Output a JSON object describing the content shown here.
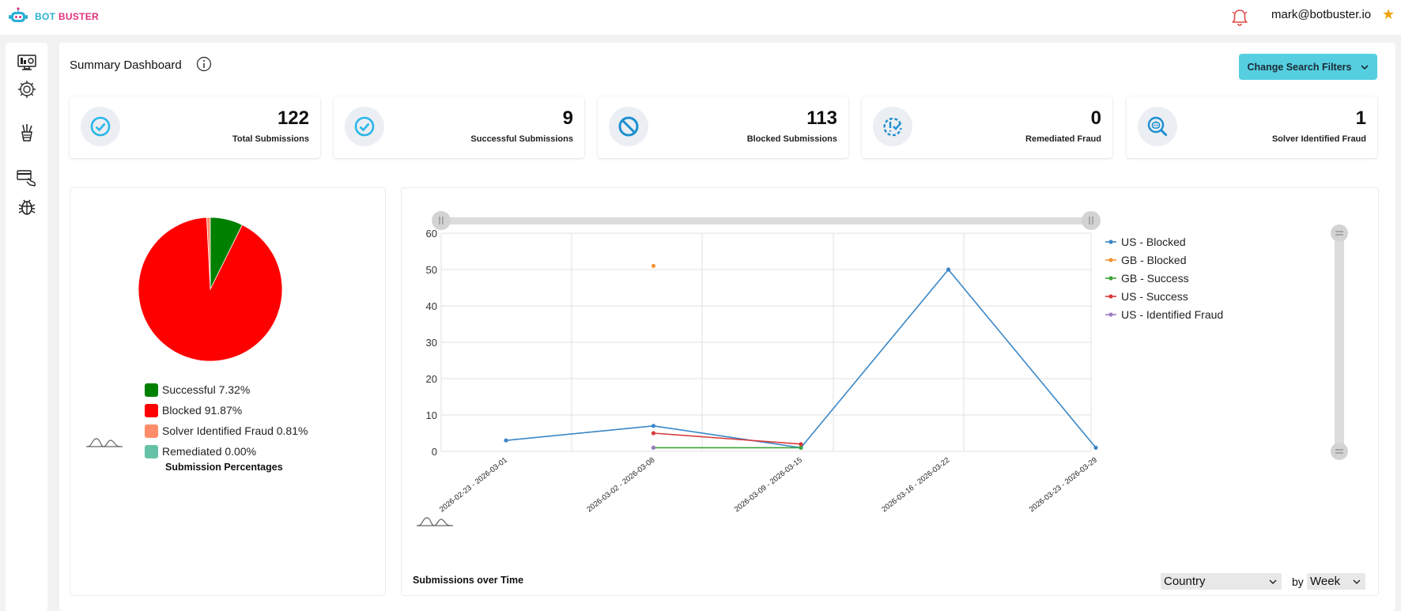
{
  "app": {
    "brand_part1": "BOT",
    "brand_part2": "BUSTER"
  },
  "header": {
    "user_email": "mark@botbuster.io",
    "star_glyph": "★"
  },
  "sidebar": {
    "items": [
      {
        "icon": "dashboard-icon"
      },
      {
        "icon": "settings-icon"
      },
      {
        "icon": "tools-icon"
      },
      {
        "icon": "card-payment-icon"
      },
      {
        "icon": "bug-icon"
      }
    ]
  },
  "dashboard": {
    "title": "Summary Dashboard",
    "filters_button": "Change Search Filters",
    "stats": [
      {
        "value": "122",
        "label": "Total Submissions",
        "icon": "check-circle-icon"
      },
      {
        "value": "9",
        "label": "Successful Submissions",
        "icon": "check-circle-icon"
      },
      {
        "value": "113",
        "label": "Blocked Submissions",
        "icon": "block-icon"
      },
      {
        "value": "0",
        "label": "Remediated Fraud",
        "icon": "remediated-icon"
      },
      {
        "value": "1",
        "label": "Solver Identified Fraud",
        "icon": "search-robot-icon"
      }
    ],
    "pie_caption": "Submission Percentages",
    "line_caption": "Submissions over Time",
    "group_select": "Country",
    "by_label": "by",
    "period_select": "Week"
  },
  "chart_data": [
    {
      "type": "pie",
      "title": "",
      "slices": [
        {
          "label": "Successful",
          "value": 7.32,
          "display": "Successful 7.32%",
          "color": "#008000"
        },
        {
          "label": "Blocked",
          "value": 91.87,
          "display": "Blocked 91.87%",
          "color": "#ff0000"
        },
        {
          "label": "Solver Identified Fraud",
          "value": 0.81,
          "display": "Solver Identified Fraud 0.81%",
          "color": "#ff8c69"
        },
        {
          "label": "Remediated",
          "value": 0.0,
          "display": "Remediated 0.00%",
          "color": "#66c2a5"
        }
      ]
    },
    {
      "type": "line",
      "title": "",
      "xlabel": "",
      "ylabel": "",
      "ylim": [
        0,
        60
      ],
      "yticks": [
        0,
        10,
        20,
        30,
        40,
        50,
        60
      ],
      "grid": true,
      "legend_position": "right",
      "categories": [
        "2026-02-23 - 2026-03-01",
        "2026-03-02 - 2026-03-08",
        "2026-03-09 - 2026-03-15",
        "2026-03-16 - 2026-03-22",
        "2026-03-23 - 2026-03-29"
      ],
      "series": [
        {
          "name": "US - Blocked",
          "color": "#3a87c7",
          "values": [
            3,
            7,
            1,
            50,
            1
          ]
        },
        {
          "name": "GB - Blocked",
          "color": "#f39433",
          "values": [
            null,
            51,
            null,
            null,
            null
          ]
        },
        {
          "name": "GB - Success",
          "color": "#3aa43a",
          "values": [
            null,
            1,
            1,
            null,
            null
          ]
        },
        {
          "name": "US - Success",
          "color": "#d9393b",
          "values": [
            null,
            5,
            2,
            null,
            null
          ]
        },
        {
          "name": "US - Identified Fraud",
          "color": "#9d7cc2",
          "values": [
            null,
            1,
            null,
            null,
            null
          ]
        }
      ]
    }
  ]
}
